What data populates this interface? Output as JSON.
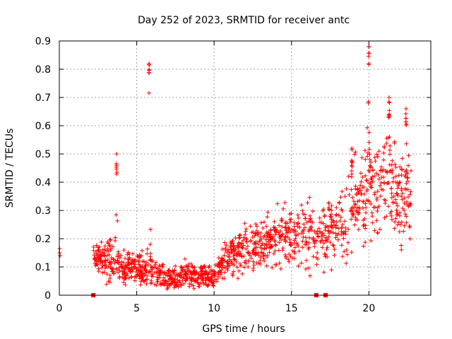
{
  "chart_data": {
    "type": "scatter",
    "title": "Day 252 of 2023, SRMTID for receiver antc",
    "xlabel": "GPS time / hours",
    "ylabel": "SRMTID / TECUs",
    "xlim": [
      0,
      24
    ],
    "ylim": [
      0,
      0.9
    ],
    "xticks": [
      "0",
      "5",
      "10",
      "15",
      "20"
    ],
    "xtick_values": [
      0,
      5,
      10,
      15,
      20
    ],
    "yticks": [
      "0",
      "0.1",
      "0.2",
      "0.3",
      "0.4",
      "0.5",
      "0.6",
      "0.7",
      "0.8",
      "0.9"
    ],
    "ytick_values": [
      0,
      0.1,
      0.2,
      0.3,
      0.4,
      0.5,
      0.6,
      0.7,
      0.8,
      0.9
    ],
    "grid": true,
    "marker": "+",
    "color": "#ff0000",
    "gap_markers_x": [
      2.2,
      16.6,
      17.2
    ],
    "trend": [
      {
        "x": 0.0,
        "y": 0.15,
        "spread": 0.02
      },
      {
        "x": 2.2,
        "y": 0.14,
        "spread": 0.03
      },
      {
        "x": 3.0,
        "y": 0.12,
        "spread": 0.05
      },
      {
        "x": 3.5,
        "y": 0.12,
        "spread": 0.05
      },
      {
        "x": 4.0,
        "y": 0.1,
        "spread": 0.04
      },
      {
        "x": 5.0,
        "y": 0.09,
        "spread": 0.04
      },
      {
        "x": 6.0,
        "y": 0.09,
        "spread": 0.04
      },
      {
        "x": 7.0,
        "y": 0.06,
        "spread": 0.03
      },
      {
        "x": 8.0,
        "y": 0.07,
        "spread": 0.03
      },
      {
        "x": 9.0,
        "y": 0.07,
        "spread": 0.03
      },
      {
        "x": 10.0,
        "y": 0.06,
        "spread": 0.03
      },
      {
        "x": 10.5,
        "y": 0.11,
        "spread": 0.04
      },
      {
        "x": 11.0,
        "y": 0.14,
        "spread": 0.05
      },
      {
        "x": 12.0,
        "y": 0.16,
        "spread": 0.06
      },
      {
        "x": 13.0,
        "y": 0.18,
        "spread": 0.06
      },
      {
        "x": 14.0,
        "y": 0.2,
        "spread": 0.07
      },
      {
        "x": 15.0,
        "y": 0.22,
        "spread": 0.08
      },
      {
        "x": 16.0,
        "y": 0.22,
        "spread": 0.08
      },
      {
        "x": 17.0,
        "y": 0.23,
        "spread": 0.08
      },
      {
        "x": 18.0,
        "y": 0.25,
        "spread": 0.08
      },
      {
        "x": 19.0,
        "y": 0.3,
        "spread": 0.1
      },
      {
        "x": 20.0,
        "y": 0.38,
        "spread": 0.12
      },
      {
        "x": 21.0,
        "y": 0.4,
        "spread": 0.12
      },
      {
        "x": 22.0,
        "y": 0.33,
        "spread": 0.11
      },
      {
        "x": 22.7,
        "y": 0.36,
        "spread": 0.1
      }
    ],
    "spikes": [
      {
        "x": 3.7,
        "peak": 0.5,
        "width": 0.15
      },
      {
        "x": 5.8,
        "peak": 0.82,
        "width": 0.12
      },
      {
        "x": 18.9,
        "peak": 0.52,
        "width": 0.15
      },
      {
        "x": 20.0,
        "peak": 0.88,
        "width": 0.12
      },
      {
        "x": 21.3,
        "peak": 0.7,
        "width": 0.15
      },
      {
        "x": 22.4,
        "peak": 0.66,
        "width": 0.1
      }
    ]
  }
}
